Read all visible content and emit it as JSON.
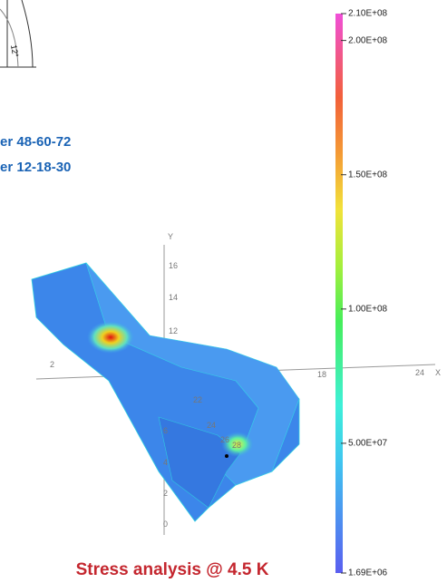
{
  "drawing": {
    "angle_label": "12°"
  },
  "legend_lines": [
    "er 48-60-72",
    "er 12-18-30"
  ],
  "axes": {
    "y_label": "Y",
    "x_label": "X",
    "y_numbers": [
      "16",
      "14",
      "12",
      "6",
      "4",
      "2",
      "0"
    ],
    "x_numbers": [
      "2",
      "18",
      "24"
    ],
    "z_numbers": [
      "22",
      "24",
      "26",
      "28"
    ]
  },
  "colorbar": {
    "range": [
      1690000,
      210000000
    ],
    "ticks": [
      {
        "value": 210000000,
        "label": "2.10E+08"
      },
      {
        "value": 200000000,
        "label": "2.00E+08"
      },
      {
        "value": 150000000,
        "label": "1.50E+08"
      },
      {
        "value": 100000000,
        "label": "1.00E+08"
      },
      {
        "value": 50000000,
        "label": "5.00E+07"
      },
      {
        "value": 1690000,
        "label": "1.69E+06"
      }
    ]
  },
  "caption": "Stress analysis @ 4.5 K"
}
